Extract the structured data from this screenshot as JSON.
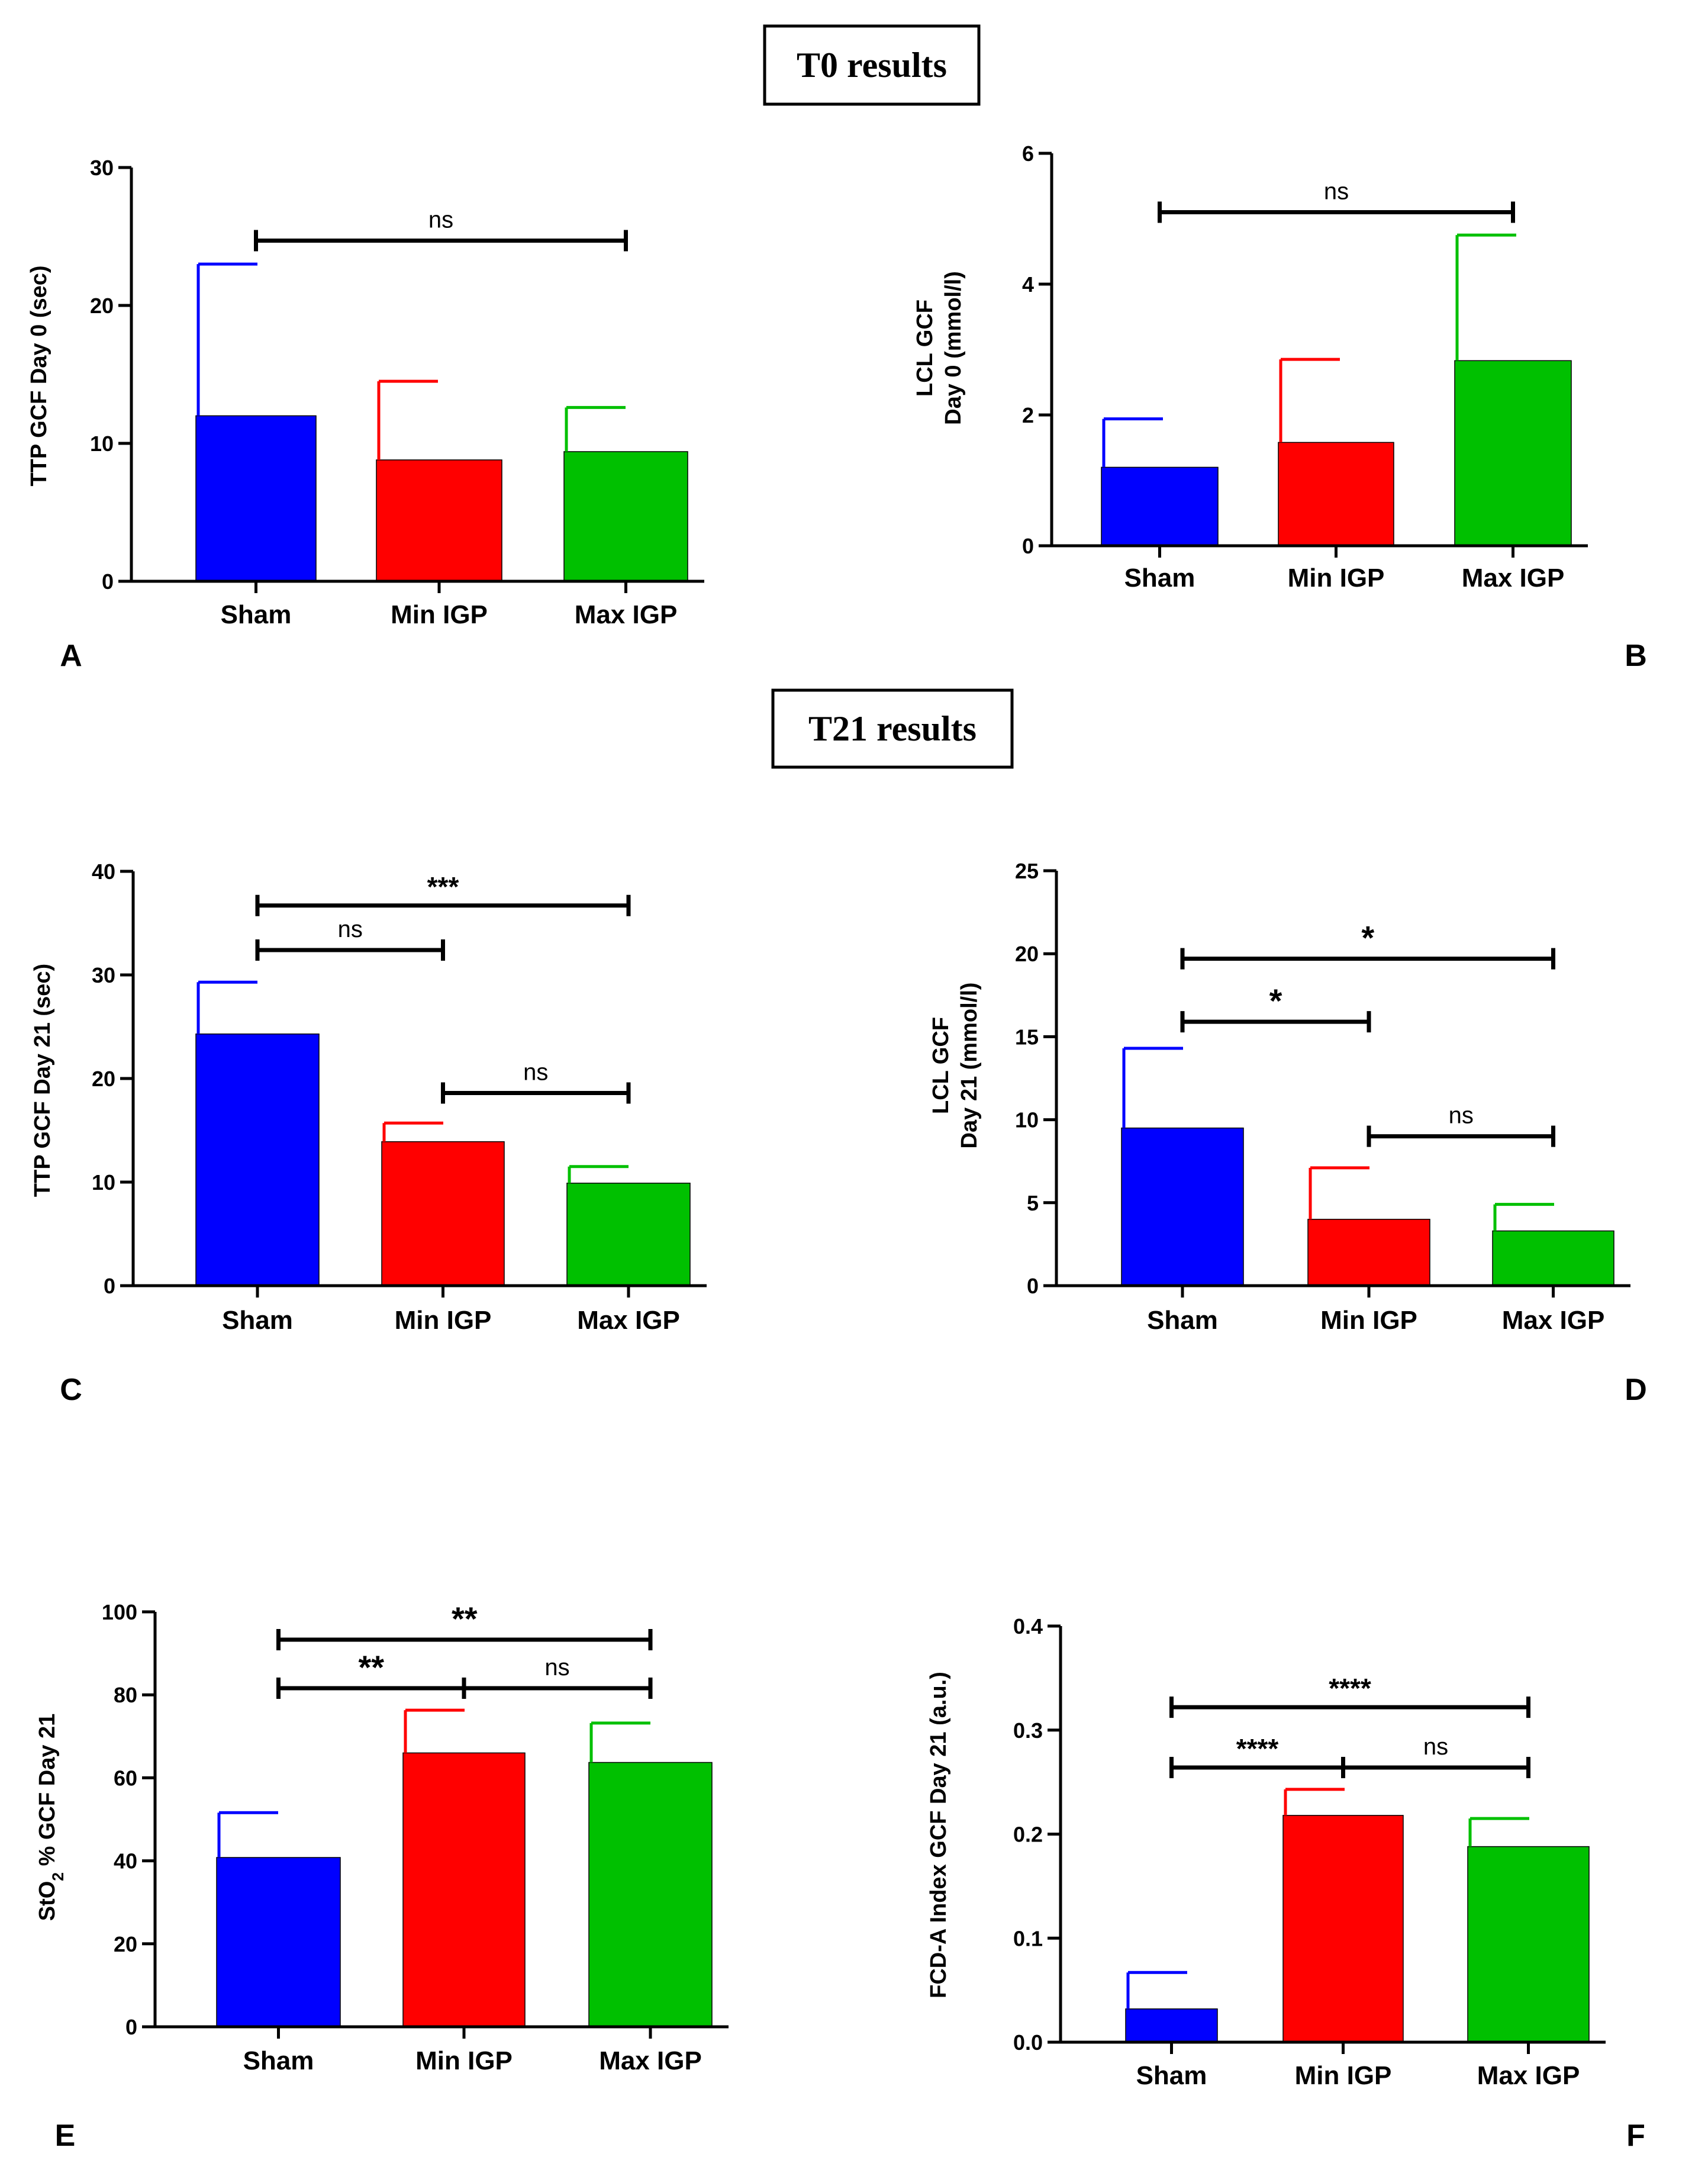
{
  "sections": [
    {
      "id": "t0",
      "title": "T0 results"
    },
    {
      "id": "t21",
      "title": "T21 results"
    }
  ],
  "colors": {
    "sham": "#0000ff",
    "min_igp": "#ff0000",
    "max_igp": "#00c000",
    "axis": "#000000"
  },
  "chart_data": [
    {
      "panel": "A",
      "type": "bar",
      "ylabel": "TTP GCF Day 0 (sec)",
      "categories": [
        "Sham",
        "Min IGP",
        "Max IGP"
      ],
      "values": [
        12.0,
        8.8,
        9.4
      ],
      "errors": [
        11.0,
        5.7,
        3.2
      ],
      "ylim": [
        0,
        30
      ],
      "yticks": [
        "0",
        "10",
        "20",
        "30"
      ],
      "significance": [
        {
          "from": 0,
          "to": 2,
          "label": "ns",
          "y": 24.7
        }
      ]
    },
    {
      "panel": "B",
      "type": "bar",
      "ylabel": [
        "LCL GCF",
        "Day 0 (mmol/l)"
      ],
      "categories": [
        "Sham",
        "Min IGP",
        "Max IGP"
      ],
      "values": [
        1.2,
        1.58,
        2.83
      ],
      "errors": [
        0.74,
        1.27,
        1.92
      ],
      "ylim": [
        0,
        6
      ],
      "yticks": [
        "0",
        "2",
        "4",
        "6"
      ],
      "significance": [
        {
          "from": 0,
          "to": 2,
          "label": "ns",
          "y": 5.1
        }
      ]
    },
    {
      "panel": "C",
      "type": "bar",
      "ylabel": "TTP GCF Day 21 (sec)",
      "categories": [
        "Sham",
        "Min IGP",
        "Max IGP"
      ],
      "values": [
        24.3,
        13.9,
        9.9
      ],
      "errors": [
        5.0,
        1.8,
        1.6
      ],
      "ylim": [
        0,
        40
      ],
      "yticks": [
        "0",
        "10",
        "20",
        "30",
        "40"
      ],
      "significance": [
        {
          "from": 0,
          "to": 2,
          "label": "***",
          "y": 36.7
        },
        {
          "from": 0,
          "to": 1,
          "label": "ns",
          "y": 32.4
        },
        {
          "from": 1,
          "to": 2,
          "label": "ns",
          "y": 18.6
        }
      ]
    },
    {
      "panel": "D",
      "type": "bar",
      "ylabel": [
        "LCL GCF",
        "Day 21 (mmol/l)"
      ],
      "categories": [
        "Sham",
        "Min IGP",
        "Max IGP"
      ],
      "values": [
        9.5,
        4.0,
        3.3
      ],
      "errors": [
        4.8,
        3.1,
        1.6
      ],
      "ylim": [
        0,
        25
      ],
      "yticks": [
        "0",
        "5",
        "10",
        "15",
        "20",
        "25"
      ],
      "significance": [
        {
          "from": 0,
          "to": 2,
          "label": "*",
          "y": 19.7
        },
        {
          "from": 0,
          "to": 1,
          "label": "*",
          "y": 15.9
        },
        {
          "from": 1,
          "to": 2,
          "label": "ns",
          "y": 9.0
        }
      ]
    },
    {
      "panel": "E",
      "type": "bar",
      "ylabel": [
        "StO",
        "2",
        " % GCF Day 21"
      ],
      "categories": [
        "Sham",
        "Min IGP",
        "Max IGP"
      ],
      "values": [
        40.8,
        66.0,
        63.7
      ],
      "errors": [
        10.8,
        10.3,
        9.5
      ],
      "ylim": [
        0,
        100
      ],
      "yticks": [
        "0",
        "20",
        "40",
        "60",
        "80",
        "100"
      ],
      "significance": [
        {
          "from": 0,
          "to": 2,
          "label": "**",
          "y": 93.3
        },
        {
          "from": 0,
          "to": 1,
          "label": "**",
          "y": 81.6
        },
        {
          "from": 1,
          "to": 2,
          "label": "ns",
          "y": 81.6
        }
      ]
    },
    {
      "panel": "F",
      "type": "bar",
      "ylabel": "FCD-A Index GCF  Day 21 (a.u.)",
      "categories": [
        "Sham",
        "Min IGP",
        "Max IGP"
      ],
      "values": [
        0.032,
        0.218,
        0.188
      ],
      "errors": [
        0.035,
        0.025,
        0.027
      ],
      "ylim": [
        0,
        0.4
      ],
      "yticks": [
        "0.0",
        "0.1",
        "0.2",
        "0.3",
        "0.4"
      ],
      "significance": [
        {
          "from": 0,
          "to": 2,
          "label": "****",
          "y": 0.322
        },
        {
          "from": 0,
          "to": 1,
          "label": "****",
          "y": 0.264
        },
        {
          "from": 1,
          "to": 2,
          "label": "ns",
          "y": 0.264
        }
      ]
    }
  ]
}
